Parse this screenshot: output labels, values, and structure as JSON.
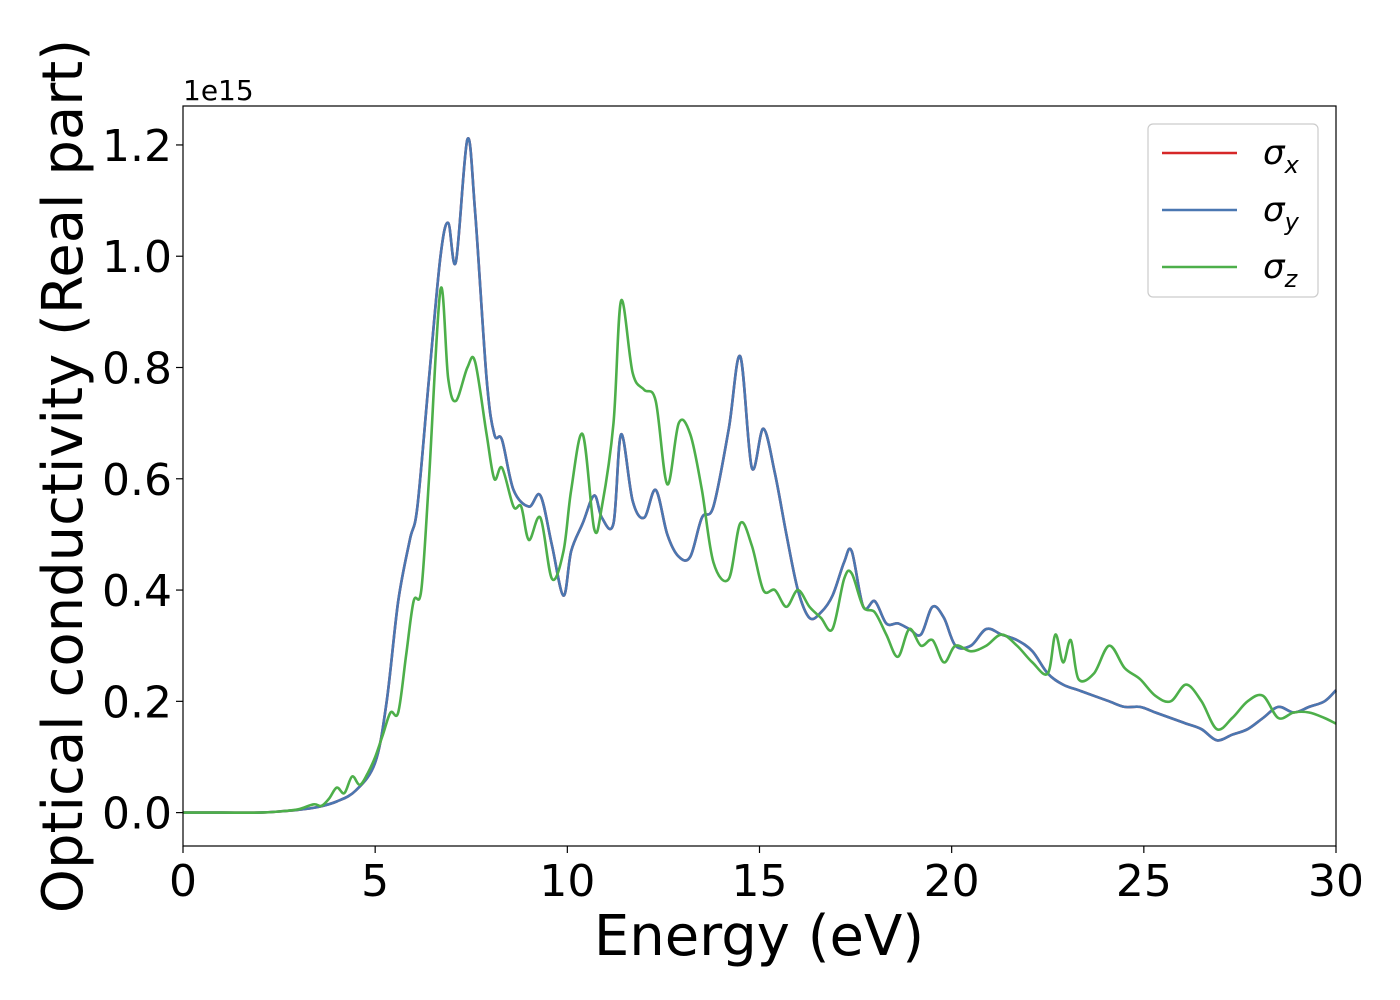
{
  "chart_data": {
    "type": "line",
    "title": "",
    "xlabel": "Energy (eV)",
    "ylabel": "Optical conductivity (Real part)",
    "y_offset_label": "1e15",
    "xlim": [
      0,
      30
    ],
    "ylim": [
      -0.06,
      1.27
    ],
    "xticks": [
      0,
      5,
      10,
      15,
      20,
      25,
      30
    ],
    "xtick_labels": [
      "0",
      "5",
      "10",
      "15",
      "20",
      "25",
      "30"
    ],
    "yticks": [
      0.0,
      0.2,
      0.4,
      0.6,
      0.8,
      1.0,
      1.2
    ],
    "ytick_labels": [
      "0.0",
      "0.2",
      "0.4",
      "0.6",
      "0.8",
      "1.0",
      "1.2"
    ],
    "grid": false,
    "legend_position": "top-right",
    "series": [
      {
        "name": "σx",
        "base": "σ",
        "sub": "x",
        "color": "#d62728",
        "x": [
          0,
          1,
          2,
          2.5,
          3,
          3.5,
          4,
          4.5,
          5,
          5.3,
          5.6,
          5.9,
          6.1,
          6.4,
          6.7,
          6.9,
          7.1,
          7.4,
          7.6,
          7.9,
          8.1,
          8.3,
          8.6,
          9.0,
          9.3,
          9.6,
          9.9,
          10.1,
          10.4,
          10.7,
          10.9,
          11.2,
          11.4,
          11.7,
          12.0,
          12.3,
          12.6,
          12.9,
          13.2,
          13.5,
          13.8,
          14.2,
          14.5,
          14.8,
          15.1,
          15.4,
          15.7,
          16.0,
          16.3,
          16.6,
          16.9,
          17.2,
          17.4,
          17.7,
          18.0,
          18.3,
          18.6,
          18.9,
          19.2,
          19.5,
          19.8,
          20.1,
          20.5,
          20.9,
          21.3,
          21.7,
          22.1,
          22.5,
          22.9,
          23.3,
          23.7,
          24.1,
          24.5,
          24.9,
          25.3,
          25.7,
          26.1,
          26.5,
          26.9,
          27.3,
          27.7,
          28.1,
          28.5,
          28.9,
          29.3,
          29.7,
          30
        ],
        "y": [
          0,
          0,
          0,
          0.002,
          0.005,
          0.01,
          0.02,
          0.04,
          0.09,
          0.2,
          0.38,
          0.49,
          0.55,
          0.78,
          1.0,
          1.06,
          0.99,
          1.21,
          1.08,
          0.78,
          0.68,
          0.67,
          0.58,
          0.55,
          0.57,
          0.48,
          0.39,
          0.47,
          0.52,
          0.57,
          0.53,
          0.52,
          0.68,
          0.56,
          0.53,
          0.58,
          0.5,
          0.46,
          0.46,
          0.53,
          0.55,
          0.69,
          0.82,
          0.62,
          0.69,
          0.61,
          0.5,
          0.4,
          0.35,
          0.36,
          0.39,
          0.45,
          0.47,
          0.37,
          0.38,
          0.34,
          0.34,
          0.33,
          0.32,
          0.37,
          0.35,
          0.3,
          0.3,
          0.33,
          0.32,
          0.31,
          0.29,
          0.25,
          0.23,
          0.22,
          0.21,
          0.2,
          0.19,
          0.19,
          0.18,
          0.17,
          0.16,
          0.15,
          0.13,
          0.14,
          0.15,
          0.17,
          0.19,
          0.18,
          0.19,
          0.2,
          0.22
        ]
      },
      {
        "name": "σy",
        "base": "σ",
        "sub": "y",
        "color": "#4a77b1",
        "x": [
          0,
          1,
          2,
          2.5,
          3,
          3.5,
          4,
          4.5,
          5,
          5.3,
          5.6,
          5.9,
          6.1,
          6.4,
          6.7,
          6.9,
          7.1,
          7.4,
          7.6,
          7.9,
          8.1,
          8.3,
          8.6,
          9.0,
          9.3,
          9.6,
          9.9,
          10.1,
          10.4,
          10.7,
          10.9,
          11.2,
          11.4,
          11.7,
          12.0,
          12.3,
          12.6,
          12.9,
          13.2,
          13.5,
          13.8,
          14.2,
          14.5,
          14.8,
          15.1,
          15.4,
          15.7,
          16.0,
          16.3,
          16.6,
          16.9,
          17.2,
          17.4,
          17.7,
          18.0,
          18.3,
          18.6,
          18.9,
          19.2,
          19.5,
          19.8,
          20.1,
          20.5,
          20.9,
          21.3,
          21.7,
          22.1,
          22.5,
          22.9,
          23.3,
          23.7,
          24.1,
          24.5,
          24.9,
          25.3,
          25.7,
          26.1,
          26.5,
          26.9,
          27.3,
          27.7,
          28.1,
          28.5,
          28.9,
          29.3,
          29.7,
          30
        ],
        "y": [
          0,
          0,
          0,
          0.002,
          0.005,
          0.01,
          0.02,
          0.04,
          0.09,
          0.2,
          0.38,
          0.49,
          0.55,
          0.78,
          1.0,
          1.06,
          0.99,
          1.21,
          1.08,
          0.78,
          0.68,
          0.67,
          0.58,
          0.55,
          0.57,
          0.48,
          0.39,
          0.47,
          0.52,
          0.57,
          0.53,
          0.52,
          0.68,
          0.56,
          0.53,
          0.58,
          0.5,
          0.46,
          0.46,
          0.53,
          0.55,
          0.69,
          0.82,
          0.62,
          0.69,
          0.61,
          0.5,
          0.4,
          0.35,
          0.36,
          0.39,
          0.45,
          0.47,
          0.37,
          0.38,
          0.34,
          0.34,
          0.33,
          0.32,
          0.37,
          0.35,
          0.3,
          0.3,
          0.33,
          0.32,
          0.31,
          0.29,
          0.25,
          0.23,
          0.22,
          0.21,
          0.2,
          0.19,
          0.19,
          0.18,
          0.17,
          0.16,
          0.15,
          0.13,
          0.14,
          0.15,
          0.17,
          0.19,
          0.18,
          0.19,
          0.2,
          0.22
        ]
      },
      {
        "name": "σz",
        "base": "σ",
        "sub": "z",
        "color": "#4daf4a",
        "x": [
          0,
          1,
          2,
          2.5,
          3,
          3.4,
          3.6,
          3.8,
          4.0,
          4.2,
          4.4,
          4.6,
          4.8,
          5.0,
          5.2,
          5.4,
          5.6,
          5.8,
          6.0,
          6.2,
          6.4,
          6.7,
          6.9,
          7.1,
          7.4,
          7.6,
          7.9,
          8.1,
          8.3,
          8.6,
          8.8,
          9.0,
          9.3,
          9.6,
          9.9,
          10.1,
          10.4,
          10.7,
          10.9,
          11.2,
          11.4,
          11.7,
          12.0,
          12.3,
          12.6,
          12.9,
          13.2,
          13.5,
          13.8,
          14.2,
          14.5,
          14.8,
          15.1,
          15.4,
          15.7,
          16.0,
          16.3,
          16.6,
          16.9,
          17.2,
          17.4,
          17.7,
          18.0,
          18.3,
          18.6,
          18.9,
          19.2,
          19.5,
          19.8,
          20.1,
          20.5,
          20.9,
          21.3,
          21.7,
          22.1,
          22.5,
          22.7,
          22.9,
          23.1,
          23.3,
          23.7,
          24.1,
          24.5,
          24.9,
          25.3,
          25.7,
          26.1,
          26.5,
          26.9,
          27.3,
          27.7,
          28.1,
          28.5,
          28.9,
          29.3,
          29.7,
          30
        ],
        "y": [
          0,
          0,
          0,
          0.002,
          0.006,
          0.015,
          0.012,
          0.025,
          0.045,
          0.035,
          0.065,
          0.05,
          0.07,
          0.1,
          0.14,
          0.18,
          0.18,
          0.28,
          0.38,
          0.4,
          0.6,
          0.94,
          0.78,
          0.74,
          0.8,
          0.81,
          0.68,
          0.6,
          0.62,
          0.55,
          0.55,
          0.49,
          0.53,
          0.42,
          0.47,
          0.58,
          0.68,
          0.51,
          0.55,
          0.7,
          0.92,
          0.79,
          0.76,
          0.74,
          0.59,
          0.7,
          0.68,
          0.58,
          0.45,
          0.42,
          0.52,
          0.48,
          0.4,
          0.4,
          0.37,
          0.4,
          0.37,
          0.35,
          0.33,
          0.42,
          0.43,
          0.37,
          0.36,
          0.32,
          0.28,
          0.33,
          0.3,
          0.31,
          0.27,
          0.3,
          0.29,
          0.3,
          0.32,
          0.3,
          0.27,
          0.25,
          0.32,
          0.27,
          0.31,
          0.24,
          0.25,
          0.3,
          0.26,
          0.24,
          0.21,
          0.2,
          0.23,
          0.2,
          0.15,
          0.17,
          0.2,
          0.21,
          0.17,
          0.18,
          0.18,
          0.17,
          0.16
        ]
      }
    ]
  }
}
